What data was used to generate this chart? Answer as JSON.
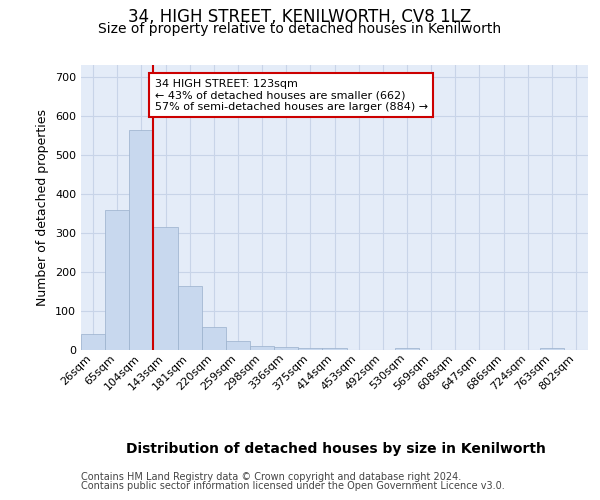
{
  "title1": "34, HIGH STREET, KENILWORTH, CV8 1LZ",
  "title2": "Size of property relative to detached houses in Kenilworth",
  "xlabel": "Distribution of detached houses by size in Kenilworth",
  "ylabel": "Number of detached properties",
  "footer1": "Contains HM Land Registry data © Crown copyright and database right 2024.",
  "footer2": "Contains public sector information licensed under the Open Government Licence v3.0.",
  "categories": [
    "26sqm",
    "65sqm",
    "104sqm",
    "143sqm",
    "181sqm",
    "220sqm",
    "259sqm",
    "298sqm",
    "336sqm",
    "375sqm",
    "414sqm",
    "453sqm",
    "492sqm",
    "530sqm",
    "569sqm",
    "608sqm",
    "647sqm",
    "686sqm",
    "724sqm",
    "763sqm",
    "802sqm"
  ],
  "values": [
    42,
    358,
    563,
    315,
    165,
    60,
    22,
    10,
    7,
    5,
    6,
    0,
    0,
    5,
    0,
    0,
    0,
    0,
    0,
    5,
    0
  ],
  "bar_color": "#c8d8ee",
  "bar_edgecolor": "#9ab0cc",
  "property_line_x": 2.5,
  "property_line_color": "#cc0000",
  "annotation_text": "34 HIGH STREET: 123sqm\n← 43% of detached houses are smaller (662)\n57% of semi-detached houses are larger (884) →",
  "annotation_box_color": "#cc0000",
  "annotation_bg": "#ffffff",
  "ylim": [
    0,
    730
  ],
  "yticks": [
    0,
    100,
    200,
    300,
    400,
    500,
    600,
    700
  ],
  "grid_color": "#c8d4e8",
  "bg_color": "#e4ecf8",
  "title1_fontsize": 12,
  "title2_fontsize": 10,
  "xlabel_fontsize": 10,
  "ylabel_fontsize": 9,
  "footer_fontsize": 7
}
